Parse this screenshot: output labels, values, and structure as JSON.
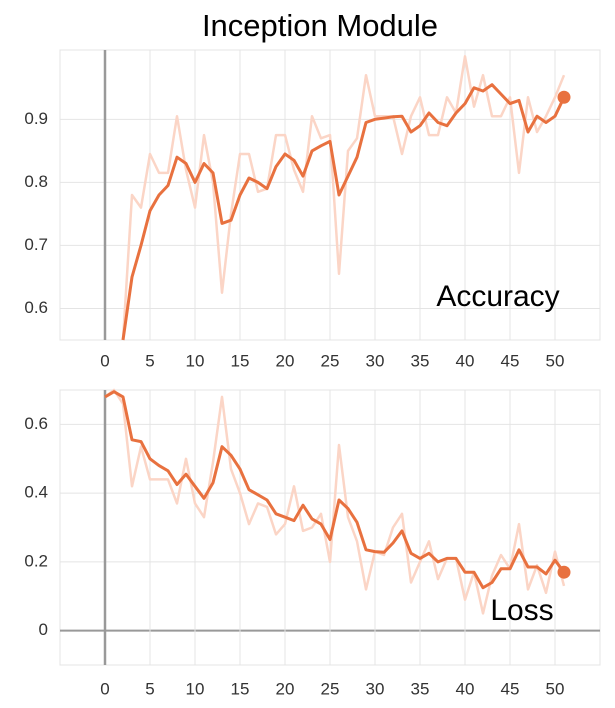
{
  "title": "Inception Module",
  "chart_data": [
    {
      "type": "line",
      "annotation": "Accuracy",
      "x": [
        2,
        3,
        4,
        5,
        6,
        7,
        8,
        9,
        10,
        11,
        12,
        13,
        14,
        15,
        16,
        17,
        18,
        19,
        20,
        21,
        22,
        23,
        24,
        25,
        26,
        27,
        28,
        29,
        30,
        31,
        32,
        33,
        34,
        35,
        36,
        37,
        38,
        39,
        40,
        41,
        42,
        43,
        44,
        45,
        46,
        47,
        48,
        49,
        50,
        51
      ],
      "series": [
        {
          "color": "#fbd5c6",
          "values": [
            0.55,
            0.78,
            0.76,
            0.845,
            0.815,
            0.815,
            0.905,
            0.82,
            0.76,
            0.875,
            0.8,
            0.625,
            0.75,
            0.845,
            0.845,
            0.785,
            0.79,
            0.875,
            0.875,
            0.82,
            0.785,
            0.905,
            0.87,
            0.875,
            0.655,
            0.85,
            0.87,
            0.97,
            0.905,
            0.905,
            0.905,
            0.845,
            0.905,
            0.935,
            0.875,
            0.875,
            0.935,
            0.91,
            1.0,
            0.92,
            0.97,
            0.905,
            0.905,
            0.935,
            0.815,
            0.935,
            0.88,
            0.905,
            0.935,
            0.97
          ]
        },
        {
          "color": "#e8713f",
          "marker_last": true,
          "values": [
            0.55,
            0.65,
            0.7,
            0.755,
            0.78,
            0.795,
            0.84,
            0.83,
            0.8,
            0.83,
            0.815,
            0.735,
            0.74,
            0.78,
            0.807,
            0.8,
            0.79,
            0.825,
            0.845,
            0.835,
            0.81,
            0.85,
            0.858,
            0.865,
            0.78,
            0.81,
            0.84,
            0.895,
            0.9,
            0.902,
            0.904,
            0.905,
            0.88,
            0.89,
            0.91,
            0.895,
            0.89,
            0.91,
            0.925,
            0.95,
            0.945,
            0.955,
            0.94,
            0.925,
            0.93,
            0.88,
            0.905,
            0.895,
            0.905,
            0.935
          ]
        }
      ],
      "xlim": [
        -5,
        55
      ],
      "xticks": [
        0,
        5,
        10,
        15,
        20,
        25,
        30,
        35,
        40,
        45,
        50
      ],
      "ylim": [
        0.55,
        1.01
      ],
      "yticks": [
        0.6,
        0.7,
        0.8,
        0.9
      ],
      "grid": true
    },
    {
      "type": "line",
      "annotation": "Loss",
      "x": [
        0,
        1,
        2,
        3,
        4,
        5,
        6,
        7,
        8,
        9,
        10,
        11,
        12,
        13,
        14,
        15,
        16,
        17,
        18,
        19,
        20,
        21,
        22,
        23,
        24,
        25,
        26,
        27,
        28,
        29,
        30,
        31,
        32,
        33,
        34,
        35,
        36,
        37,
        38,
        39,
        40,
        41,
        42,
        43,
        44,
        45,
        46,
        47,
        48,
        49,
        50,
        51
      ],
      "series": [
        {
          "color": "#fbd5c6",
          "values": [
            0.68,
            0.7,
            0.66,
            0.42,
            0.535,
            0.44,
            0.44,
            0.44,
            0.37,
            0.5,
            0.37,
            0.33,
            0.49,
            0.68,
            0.47,
            0.4,
            0.31,
            0.37,
            0.36,
            0.28,
            0.31,
            0.42,
            0.29,
            0.3,
            0.34,
            0.2,
            0.54,
            0.33,
            0.26,
            0.12,
            0.23,
            0.22,
            0.3,
            0.34,
            0.14,
            0.2,
            0.26,
            0.15,
            0.21,
            0.21,
            0.09,
            0.17,
            0.05,
            0.16,
            0.22,
            0.18,
            0.31,
            0.12,
            0.19,
            0.11,
            0.23,
            0.13
          ]
        },
        {
          "color": "#e8713f",
          "marker_last": true,
          "values": [
            0.68,
            0.695,
            0.68,
            0.555,
            0.55,
            0.5,
            0.48,
            0.465,
            0.425,
            0.455,
            0.42,
            0.385,
            0.43,
            0.535,
            0.51,
            0.47,
            0.41,
            0.395,
            0.38,
            0.34,
            0.33,
            0.32,
            0.365,
            0.325,
            0.31,
            0.265,
            0.38,
            0.355,
            0.315,
            0.235,
            0.23,
            0.228,
            0.255,
            0.29,
            0.225,
            0.21,
            0.225,
            0.2,
            0.21,
            0.21,
            0.17,
            0.17,
            0.125,
            0.14,
            0.18,
            0.18,
            0.235,
            0.185,
            0.185,
            0.165,
            0.205,
            0.17
          ]
        }
      ],
      "xlim": [
        -5,
        55
      ],
      "xticks": [
        0,
        5,
        10,
        15,
        20,
        25,
        30,
        35,
        40,
        45,
        50
      ],
      "ylim": [
        -0.1,
        0.7
      ],
      "yticks": [
        0,
        0.2,
        0.4,
        0.6
      ],
      "grid": true
    }
  ]
}
